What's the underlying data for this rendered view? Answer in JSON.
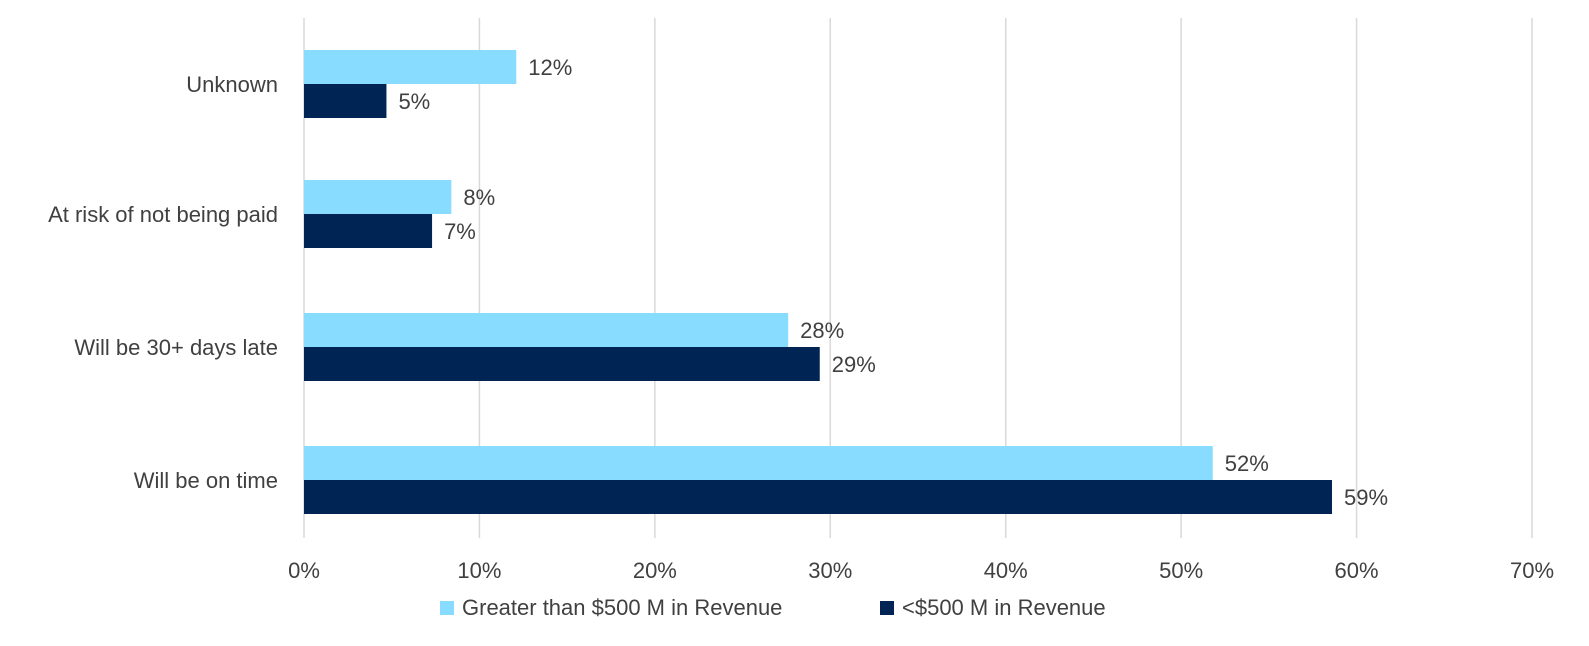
{
  "chart_data": {
    "type": "bar",
    "orientation": "horizontal",
    "categories": [
      "Unknown",
      "At risk of not being paid",
      "Will be 30+ days late",
      "Will be on time"
    ],
    "series": [
      {
        "name": "Greater than $500 M in Revenue",
        "color": "#87dcff",
        "values": [
          12.1,
          8.4,
          27.6,
          51.8
        ],
        "labels": [
          "12%",
          "8%",
          "28%",
          "52%"
        ]
      },
      {
        "name": "<$500 M in Revenue",
        "color": "#002554",
        "values": [
          4.7,
          7.3,
          29.4,
          58.6
        ],
        "labels": [
          "5%",
          "7%",
          "29%",
          "59%"
        ]
      }
    ],
    "xlim": [
      0,
      70
    ],
    "xticks": [
      0,
      10,
      20,
      30,
      40,
      50,
      60,
      70
    ],
    "xtick_labels": [
      "0%",
      "10%",
      "20%",
      "30%",
      "40%",
      "50%",
      "60%",
      "70%"
    ],
    "grid": true,
    "legend": "bottom"
  }
}
